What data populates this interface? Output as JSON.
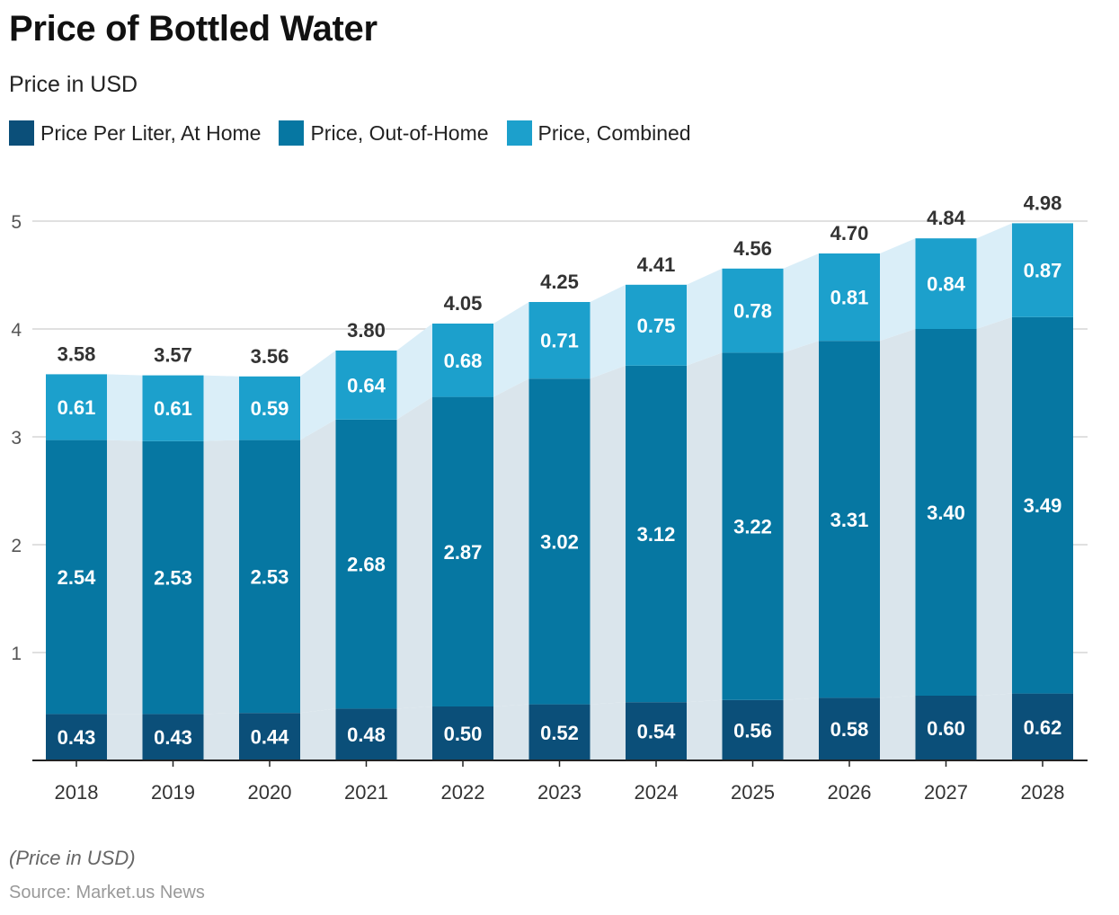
{
  "chart_data": {
    "type": "bar",
    "stacked": true,
    "title": "Price of Bottled Water",
    "subtitle": "Price in USD",
    "categories": [
      "2018",
      "2019",
      "2020",
      "2021",
      "2022",
      "2023",
      "2024",
      "2025",
      "2026",
      "2027",
      "2028"
    ],
    "series": [
      {
        "name": "Price Per Liter, At Home",
        "color": "#0b4f79",
        "values": [
          0.43,
          0.43,
          0.44,
          0.48,
          0.5,
          0.52,
          0.54,
          0.56,
          0.58,
          0.6,
          0.62
        ]
      },
      {
        "name": "Price, Out-of-Home",
        "color": "#0677a2",
        "values": [
          2.54,
          2.53,
          2.53,
          2.68,
          2.87,
          3.02,
          3.12,
          3.22,
          3.31,
          3.4,
          3.49
        ]
      },
      {
        "name": "Price, Combined",
        "color": "#1ca0cc",
        "values": [
          0.61,
          0.61,
          0.59,
          0.64,
          0.68,
          0.71,
          0.75,
          0.78,
          0.81,
          0.84,
          0.87
        ]
      }
    ],
    "totals": [
      "3.58",
      "3.57",
      "3.56",
      "3.80",
      "4.05",
      "4.25",
      "4.41",
      "4.56",
      "4.70",
      "4.84",
      "4.98"
    ],
    "yticks": [
      1,
      2,
      3,
      4,
      5
    ],
    "ylim": [
      0,
      5
    ],
    "grid": true,
    "legend": "top-left",
    "xlabel": "",
    "ylabel": ""
  },
  "footnote": "(Price in USD)",
  "source": "Source: Market.us News"
}
